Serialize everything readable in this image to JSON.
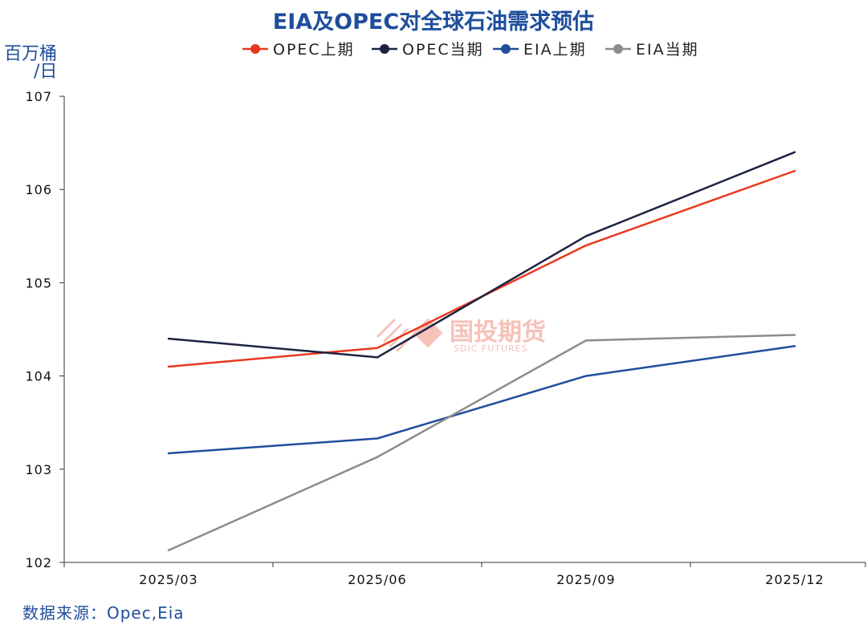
{
  "chart_data": {
    "type": "line",
    "title": "EIA及OPEC对全球石油需求预估",
    "ylabel_line1": "百万桶",
    "ylabel_line2": "/日",
    "categories": [
      "2025/03",
      "2025/06",
      "2025/09",
      "2025/12"
    ],
    "ylim": [
      102,
      107
    ],
    "yticks": [
      102,
      103,
      104,
      105,
      106,
      107
    ],
    "series": [
      {
        "name": "OPEC上期",
        "color": "#e8381f",
        "values": [
          104.1,
          104.3,
          105.4,
          106.2
        ]
      },
      {
        "name": "OPEC当期",
        "color": "#1c2340",
        "values": [
          104.4,
          104.2,
          105.5,
          106.4
        ]
      },
      {
        "name": "EIA上期",
        "color": "#1f4e9c",
        "values": [
          103.17,
          103.33,
          104.0,
          104.32
        ]
      },
      {
        "name": "EIA当期",
        "color": "#8c8c8c",
        "values": [
          102.13,
          103.13,
          104.38,
          104.44
        ]
      }
    ],
    "legend_position": "top-center",
    "source": "数据来源：Opec,Eia",
    "watermark": {
      "name": "国投期货",
      "sub": "SDIC FUTURES"
    }
  }
}
